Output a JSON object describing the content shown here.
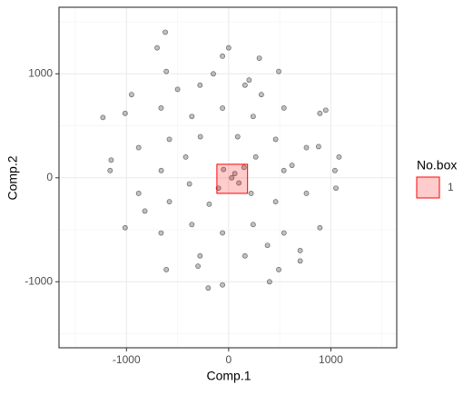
{
  "chart_data": {
    "type": "scatter",
    "x_label": "Comp.1",
    "y_label": "Comp.2",
    "xlim": [
      -1660,
      1645
    ],
    "ylim": [
      -1635,
      1640
    ],
    "xticks": [
      -1000,
      0,
      1000
    ],
    "yticks": [
      -1000,
      0,
      1000
    ],
    "grid": true,
    "series": [
      {
        "color": "#000000",
        "x": [
          1040,
          893,
          490,
          -60,
          -610,
          -1013,
          -1160,
          -1013,
          -610,
          -60,
          490,
          893,
          761,
          541,
          160,
          -280,
          -661,
          -881,
          -881,
          -661,
          -280,
          160,
          541,
          761,
          540,
          460,
          240,
          -60,
          -360,
          -580,
          -660,
          -580,
          -360,
          -60,
          240,
          460,
          265,
          88,
          -277,
          -384,
          -190,
          220,
          -1230,
          -1150,
          1080,
          1050,
          -700,
          -620,
          300,
          0,
          -200,
          400,
          700,
          950,
          -950,
          30,
          100,
          -50,
          150,
          -100,
          60,
          320,
          -420,
          620,
          -820,
          880,
          -300,
          380,
          -500,
          700,
          -150,
          200
        ],
        "y": [
          70,
          620,
          1023,
          1170,
          1023,
          620,
          70,
          -480,
          -883,
          -1030,
          -883,
          -480,
          290,
          671,
          891,
          891,
          671,
          290,
          -150,
          -531,
          -751,
          -751,
          -531,
          -150,
          70,
          370,
          590,
          670,
          590,
          370,
          70,
          -230,
          -450,
          -530,
          -450,
          -230,
          201,
          395,
          395,
          -59,
          -254,
          -150,
          580,
          170,
          200,
          -100,
          1250,
          1400,
          1150,
          1250,
          -1060,
          -1000,
          -800,
          650,
          800,
          0,
          -50,
          80,
          100,
          -100,
          40,
          800,
          200,
          120,
          -320,
          300,
          -850,
          -650,
          850,
          -700,
          1000,
          940
        ]
      }
    ],
    "boxes": {
      "name": "No.box",
      "labels": [
        "1"
      ],
      "color": "#ff0000",
      "xmin": [
        -115
      ],
      "xmax": [
        185
      ],
      "ymin": [
        -150
      ],
      "ymax": [
        130
      ]
    }
  }
}
